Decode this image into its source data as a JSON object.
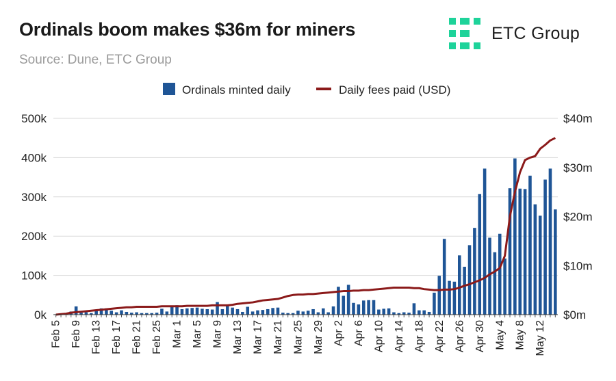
{
  "header": {
    "title": "Ordinals boom makes $36m for miners",
    "subtitle": "Source: Dune, ETC Group"
  },
  "brand": {
    "name": "ETC Group",
    "logo_color": "#1ed39a"
  },
  "chart_data": {
    "type": "bar",
    "title": "Ordinals boom makes $36m for miners",
    "legend_position": "top-center",
    "categories": [
      "Feb 5",
      "Feb 6",
      "Feb 7",
      "Feb 8",
      "Feb 9",
      "Feb 10",
      "Feb 11",
      "Feb 12",
      "Feb 13",
      "Feb 14",
      "Feb 15",
      "Feb 16",
      "Feb 17",
      "Feb 18",
      "Feb 19",
      "Feb 20",
      "Feb 21",
      "Feb 22",
      "Feb 23",
      "Feb 24",
      "Feb 25",
      "Feb 26",
      "Feb 27",
      "Feb 28",
      "Mar 1",
      "Mar 2",
      "Mar 3",
      "Mar 4",
      "Mar 5",
      "Mar 6",
      "Mar 7",
      "Mar 8",
      "Mar 9",
      "Mar 10",
      "Mar 11",
      "Mar 12",
      "Mar 13",
      "Mar 14",
      "Mar 15",
      "Mar 16",
      "Mar 17",
      "Mar 18",
      "Mar 19",
      "Mar 20",
      "Mar 21",
      "Mar 22",
      "Mar 23",
      "Mar 24",
      "Mar 25",
      "Mar 26",
      "Mar 27",
      "Mar 28",
      "Mar 29",
      "Mar 30",
      "Mar 31",
      "Apr 1",
      "Apr 2",
      "Apr 3",
      "Apr 4",
      "Apr 5",
      "Apr 6",
      "Apr 7",
      "Apr 8",
      "Apr 9",
      "Apr 10",
      "Apr 11",
      "Apr 12",
      "Apr 13",
      "Apr 14",
      "Apr 15",
      "Apr 16",
      "Apr 17",
      "Apr 18",
      "Apr 19",
      "Apr 20",
      "Apr 21",
      "Apr 22",
      "Apr 23",
      "Apr 24",
      "Apr 25",
      "Apr 26",
      "Apr 27",
      "Apr 28",
      "Apr 29",
      "Apr 30",
      "May 1",
      "May 2",
      "May 3",
      "May 4",
      "May 5",
      "May 6",
      "May 7",
      "May 8",
      "May 9",
      "May 10",
      "May 11",
      "May 12",
      "May 13",
      "May 14",
      "May 15"
    ],
    "x_tick_labels": [
      "Feb 5",
      "Feb 9",
      "Feb 13",
      "Feb 17",
      "Feb 21",
      "Feb 25",
      "Mar 1",
      "Mar 5",
      "Mar 9",
      "Mar 13",
      "Mar 17",
      "Mar 21",
      "Mar 25",
      "Mar 29",
      "Apr 2",
      "Apr 6",
      "Apr 10",
      "Apr 14",
      "Apr 18",
      "Apr 22",
      "Apr 26",
      "Apr 30",
      "May 4",
      "May 8",
      "May 12"
    ],
    "series": [
      {
        "name": "Ordinals minted daily",
        "axis": "left",
        "kind": "bar",
        "color": "#1f5596",
        "values": [
          1000,
          2000,
          3000,
          8000,
          21000,
          5000,
          6000,
          4000,
          10000,
          16000,
          16000,
          10000,
          6000,
          11000,
          7000,
          5000,
          6000,
          4000,
          4000,
          4000,
          5000,
          15000,
          8000,
          22000,
          24000,
          14000,
          16000,
          17000,
          18000,
          15000,
          14000,
          13000,
          32000,
          14000,
          26000,
          18000,
          14000,
          7000,
          20000,
          8000,
          11000,
          12000,
          14000,
          17000,
          18000,
          5000,
          4000,
          4000,
          10000,
          8000,
          10000,
          14000,
          6000,
          16000,
          6000,
          21000,
          71000,
          48000,
          76000,
          30000,
          26000,
          36000,
          37000,
          37000,
          13000,
          15000,
          16000,
          6000,
          4000,
          6000,
          5000,
          29000,
          11000,
          11000,
          7000,
          56000,
          99000,
          193000,
          86000,
          84000,
          151000,
          122000,
          177000,
          221000,
          307000,
          372000,
          196000,
          159000,
          206000,
          143000,
          322000,
          398000,
          321000,
          320000,
          354000,
          281000,
          252000,
          344000,
          372000,
          268000
        ]
      },
      {
        "name": "Daily fees paid (USD)",
        "axis": "right",
        "kind": "line",
        "color": "#8b1a1a",
        "values": [
          0.0,
          0.1,
          0.2,
          0.4,
          0.5,
          0.6,
          0.7,
          0.8,
          0.9,
          1.0,
          1.1,
          1.2,
          1.3,
          1.4,
          1.5,
          1.5,
          1.6,
          1.6,
          1.6,
          1.6,
          1.6,
          1.7,
          1.7,
          1.7,
          1.7,
          1.7,
          1.8,
          1.8,
          1.8,
          1.8,
          1.8,
          1.9,
          1.9,
          1.9,
          1.9,
          2.0,
          2.2,
          2.3,
          2.4,
          2.5,
          2.7,
          2.9,
          3.0,
          3.1,
          3.2,
          3.5,
          3.8,
          4.0,
          4.1,
          4.1,
          4.2,
          4.2,
          4.3,
          4.4,
          4.5,
          4.6,
          4.7,
          4.8,
          4.8,
          4.9,
          4.9,
          5.0,
          5.0,
          5.1,
          5.2,
          5.3,
          5.4,
          5.5,
          5.5,
          5.5,
          5.5,
          5.4,
          5.4,
          5.2,
          5.1,
          5.0,
          5.0,
          5.1,
          5.1,
          5.2,
          5.5,
          5.9,
          6.2,
          6.6,
          7.0,
          7.5,
          8.2,
          8.8,
          9.5,
          12.0,
          20.0,
          25.0,
          29.0,
          31.5,
          32.0,
          32.3,
          33.8,
          34.6,
          35.5,
          36.0
        ]
      }
    ],
    "y_left": {
      "min": 0,
      "max": 500000,
      "ticks": [
        0,
        100000,
        200000,
        300000,
        400000,
        500000
      ],
      "tick_labels": [
        "0k",
        "100k",
        "200k",
        "300k",
        "400k",
        "500k"
      ]
    },
    "y_right": {
      "min": 0,
      "max": 40,
      "unit": "USD millions",
      "ticks": [
        0,
        10,
        20,
        30,
        40
      ],
      "tick_labels": [
        "$0m",
        "$10m",
        "$20m",
        "$30m",
        "$40m"
      ]
    },
    "grid": true
  }
}
